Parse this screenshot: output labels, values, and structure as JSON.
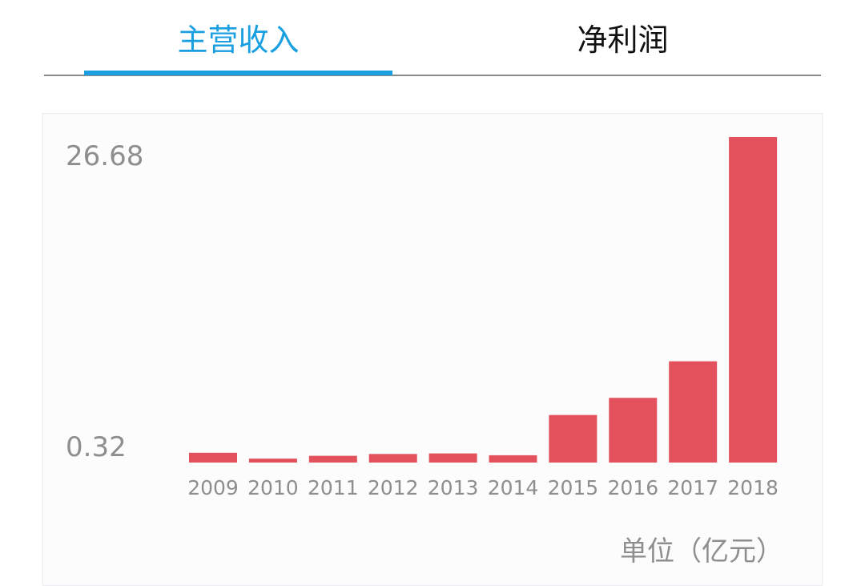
{
  "tabs": [
    {
      "label": "主营收入",
      "active": true
    },
    {
      "label": "净利润",
      "active": false
    }
  ],
  "colors": {
    "accent": "#1a9fe0",
    "bar": "#e2515c",
    "axis_text": "#8e8e8e",
    "inactive_tab": "#111111"
  },
  "chart_data": {
    "type": "bar",
    "categories": [
      "2009",
      "2010",
      "2011",
      "2012",
      "2013",
      "2014",
      "2015",
      "2016",
      "2017",
      "2018"
    ],
    "values": [
      0.8,
      0.32,
      0.55,
      0.7,
      0.75,
      0.6,
      3.9,
      5.3,
      8.3,
      26.68
    ],
    "y_tick_labels": [
      "26.68",
      "0.32"
    ],
    "ylim": [
      0,
      26.68
    ],
    "grid": false,
    "unit_label": "单位（亿元）"
  }
}
